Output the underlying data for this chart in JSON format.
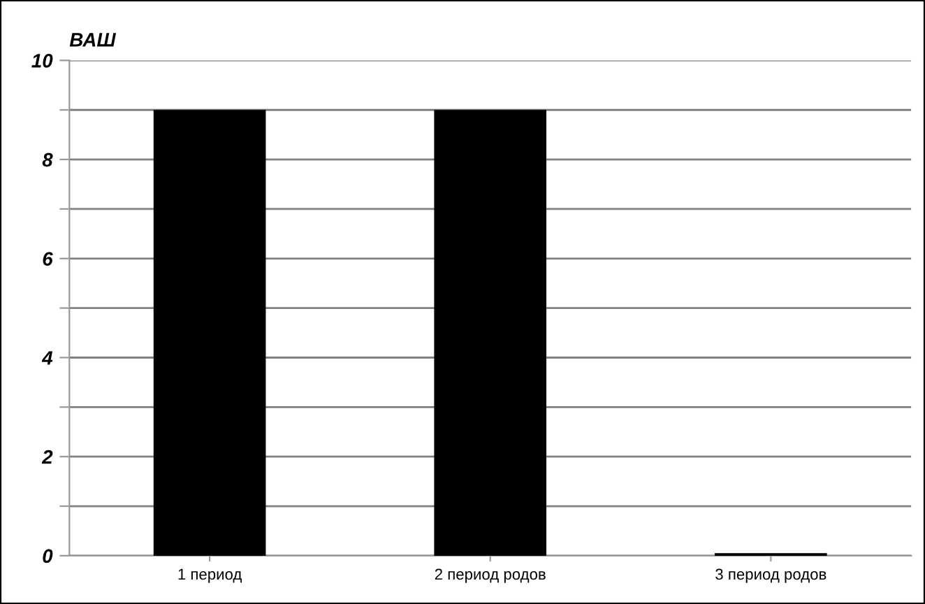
{
  "chart_data": {
    "type": "bar",
    "ylabel": "ВАШ",
    "categories": [
      "1 период",
      "2 период родов",
      "3 период родов"
    ],
    "values": [
      9,
      9,
      0.05
    ],
    "color": "#000000",
    "ylim": [
      0,
      10
    ],
    "yticks": [
      0,
      {
        "value": 1,
        "label": null
      },
      2,
      {
        "value": 3,
        "label": null
      },
      4,
      {
        "value": 5,
        "label": null
      },
      6,
      {
        "value": 7,
        "label": null
      },
      8,
      {
        "value": 9,
        "label": null
      },
      10
    ],
    "grid": "y"
  }
}
